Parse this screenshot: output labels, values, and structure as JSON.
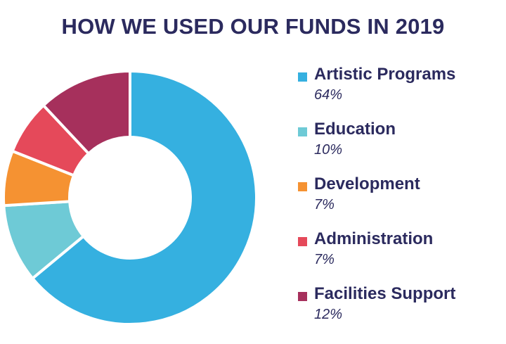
{
  "chart_data": {
    "type": "pie",
    "title": "HOW WE USED OUR FUNDS IN 2019",
    "slices": [
      {
        "label": "Artistic Programs",
        "value": 64,
        "display": "64%",
        "color": "#35b0e0"
      },
      {
        "label": "Education",
        "value": 10,
        "display": "10%",
        "color": "#6ecad6"
      },
      {
        "label": "Development",
        "value": 7,
        "display": "7%",
        "color": "#f59232"
      },
      {
        "label": "Administration",
        "value": 7,
        "display": "7%",
        "color": "#e5495a"
      },
      {
        "label": "Facilities Support",
        "value": 12,
        "display": "12%",
        "color": "#a6305c"
      }
    ],
    "donut": true,
    "legend_position": "right"
  }
}
